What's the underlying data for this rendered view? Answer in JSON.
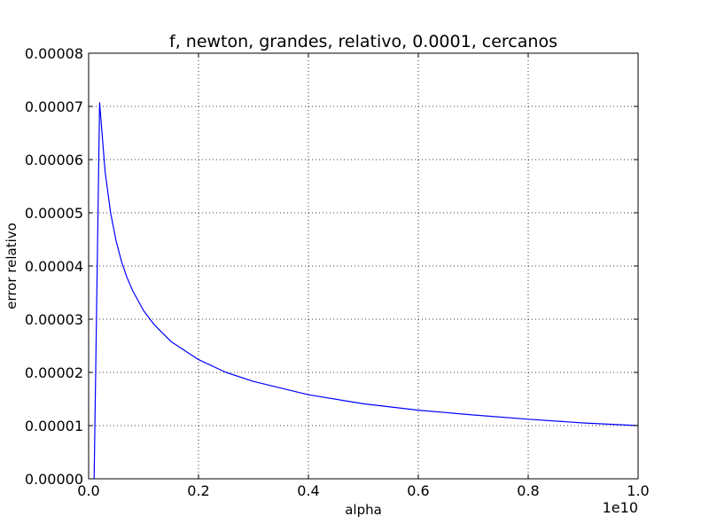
{
  "chart_data": {
    "type": "line",
    "title": "f, newton, grandes, relativo, 0.0001, cercanos",
    "xlabel": "alpha",
    "ylabel": "error relativo",
    "x_offset_label": "1e10",
    "xlim": [
      0.0,
      1.0
    ],
    "ylim": [
      0.0,
      8e-05
    ],
    "x_ticks": [
      0.0,
      0.2,
      0.4,
      0.6,
      0.8,
      1.0
    ],
    "x_tick_labels": [
      "0.0",
      "0.2",
      "0.4",
      "0.6",
      "0.8",
      "1.0"
    ],
    "y_ticks": [
      0.0,
      1e-05,
      2e-05,
      3e-05,
      4e-05,
      5e-05,
      6e-05,
      7e-05,
      8e-05
    ],
    "y_tick_labels": [
      "0.00000",
      "0.00001",
      "0.00002",
      "0.00003",
      "0.00004",
      "0.00005",
      "0.00006",
      "0.00007",
      "0.00008"
    ],
    "grid": true,
    "series": [
      {
        "color": "#0000ff",
        "x": [
          0.01,
          0.02,
          0.03,
          0.04,
          0.05,
          0.06,
          0.07,
          0.08,
          0.1,
          0.12,
          0.15,
          0.2,
          0.25,
          0.3,
          0.4,
          0.5,
          0.6,
          0.7,
          0.8,
          0.9,
          1.0
        ],
        "y": [
          0.0,
          7.07e-05,
          5.77e-05,
          5e-05,
          4.47e-05,
          4.08e-05,
          3.78e-05,
          3.54e-05,
          3.16e-05,
          2.89e-05,
          2.58e-05,
          2.24e-05,
          2e-05,
          1.83e-05,
          1.58e-05,
          1.41e-05,
          1.29e-05,
          1.2e-05,
          1.12e-05,
          1.05e-05,
          1e-05
        ]
      }
    ]
  }
}
